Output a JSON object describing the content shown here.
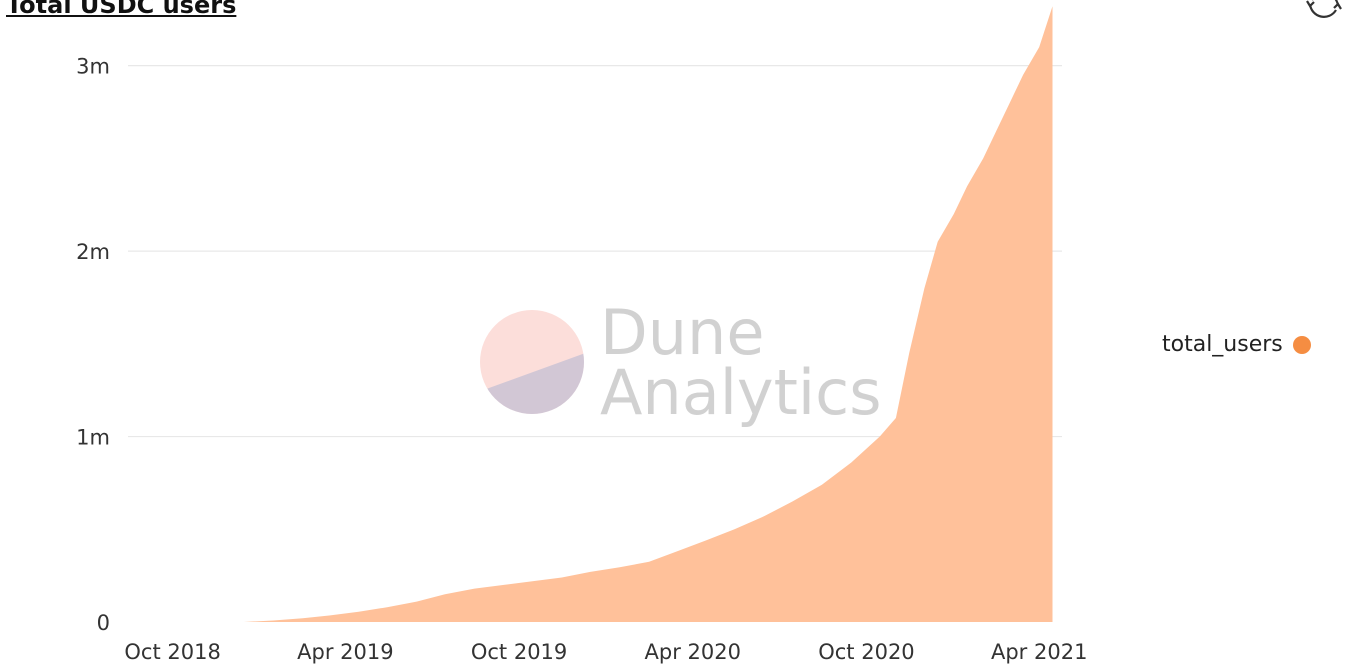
{
  "colors": {
    "area": "#ffc19a",
    "legend_dot": "#f58d42",
    "grid": "#e8e8e8",
    "text": "#333333",
    "watermark_text": "#b8b8b8",
    "watermark_top": "#f9b6ad",
    "watermark_bottom": "#aeb4d1"
  },
  "header": {
    "refresh_icon": "refresh-icon"
  },
  "watermark": {
    "line1": "Dune",
    "line2": "Analytics"
  },
  "chart_data": {
    "type": "area",
    "title": "Total USDC users",
    "xlabel": "",
    "ylabel": "",
    "x_ticks": [
      "Oct 2018",
      "Apr 2019",
      "Oct 2019",
      "Apr 2020",
      "Oct 2020",
      "Apr 2021"
    ],
    "y_ticks": [
      {
        "value": 0,
        "label": "0"
      },
      {
        "value": 1000000,
        "label": "1m"
      },
      {
        "value": 2000000,
        "label": "2m"
      },
      {
        "value": 3000000,
        "label": "3m"
      }
    ],
    "xlim": [
      "2018-08-15",
      "2021-04-25"
    ],
    "ylim": [
      0,
      3300000
    ],
    "grid": true,
    "legend_position": "right",
    "series": [
      {
        "name": "total_users",
        "x": [
          "2018-12-15",
          "2019-01-15",
          "2019-02-15",
          "2019-03-15",
          "2019-04-15",
          "2019-05-15",
          "2019-06-15",
          "2019-07-15",
          "2019-08-15",
          "2019-09-15",
          "2019-10-15",
          "2019-11-15",
          "2019-12-15",
          "2020-01-15",
          "2020-02-15",
          "2020-03-15",
          "2020-04-15",
          "2020-05-15",
          "2020-06-15",
          "2020-07-15",
          "2020-08-15",
          "2020-09-15",
          "2020-10-15",
          "2020-11-01",
          "2020-11-15",
          "2020-12-01",
          "2020-12-15",
          "2021-01-01",
          "2021-01-15",
          "2021-02-01",
          "2021-02-15",
          "2021-03-01",
          "2021-03-15",
          "2021-04-01",
          "2021-04-15"
        ],
        "values": [
          0,
          8000,
          20000,
          35000,
          55000,
          80000,
          110000,
          150000,
          180000,
          200000,
          220000,
          240000,
          270000,
          295000,
          325000,
          380000,
          440000,
          500000,
          570000,
          650000,
          740000,
          860000,
          1000000,
          1100000,
          1450000,
          1800000,
          2050000,
          2200000,
          2350000,
          2500000,
          2650000,
          2800000,
          2950000,
          3100000,
          3320000
        ]
      }
    ]
  }
}
